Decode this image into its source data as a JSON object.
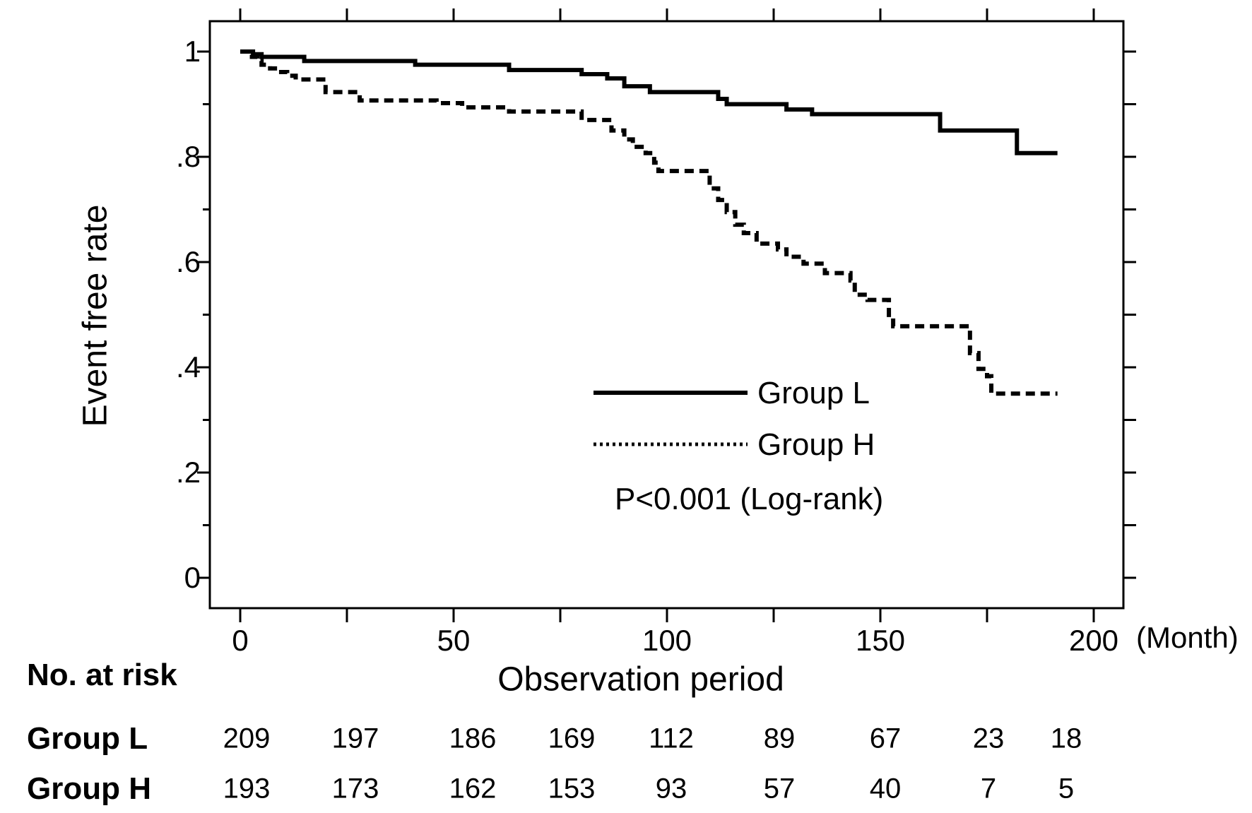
{
  "chart_data": {
    "type": "line",
    "subtype": "kaplan-meier-step-curves",
    "title": "",
    "ylabel": "Event free rate",
    "xlabel": "Observation period",
    "xunit": "(Month)",
    "grid": false,
    "legend_position": "inside-lower-right-of-center",
    "pvalue_text": "P<0.001 (Log-rank)",
    "line_color": "#000000",
    "x_axis": {
      "labeled_ticks": [
        {
          "value": 0,
          "label": "0"
        },
        {
          "value": 50,
          "label": "50"
        },
        {
          "value": 100,
          "label": "100"
        },
        {
          "value": 150,
          "label": "150"
        },
        {
          "value": 200,
          "label": "200"
        }
      ],
      "all_tick_values": [
        0,
        25,
        50,
        75,
        100,
        125,
        150,
        175,
        200
      ],
      "range_months": [
        0,
        200
      ]
    },
    "y_axis": {
      "labeled_ticks": [
        {
          "value": 1,
          "label": "1"
        },
        {
          "value": 0.8,
          "label": ".8"
        },
        {
          "value": 0.6,
          "label": ".6"
        },
        {
          "value": 0.4,
          "label": ".4"
        },
        {
          "value": 0.2,
          "label": ".2"
        },
        {
          "value": 0,
          "label": "0"
        }
      ],
      "minor_tick_values": [
        0.9,
        0.7,
        0.5,
        0.3,
        0.1
      ],
      "range": [
        0,
        1
      ]
    },
    "series": [
      {
        "name": "Group L",
        "style": "solid",
        "end_month": 191.5,
        "points": [
          [
            0,
            1.0
          ],
          [
            3,
            0.995
          ],
          [
            5,
            0.99
          ],
          [
            15,
            0.982
          ],
          [
            41,
            0.975
          ],
          [
            63,
            0.965
          ],
          [
            80,
            0.957
          ],
          [
            86,
            0.949
          ],
          [
            90,
            0.934
          ],
          [
            96,
            0.923
          ],
          [
            112,
            0.91
          ],
          [
            114,
            0.9
          ],
          [
            128,
            0.89
          ],
          [
            134,
            0.881
          ],
          [
            164,
            0.85
          ],
          [
            182,
            0.807
          ]
        ]
      },
      {
        "name": "Group H",
        "style": "dashed",
        "end_month": 191.5,
        "points": [
          [
            0,
            1.0
          ],
          [
            2,
            0.99
          ],
          [
            4,
            0.982
          ],
          [
            5,
            0.975
          ],
          [
            7,
            0.968
          ],
          [
            9,
            0.961
          ],
          [
            11,
            0.954
          ],
          [
            13,
            0.947
          ],
          [
            20,
            0.923
          ],
          [
            28,
            0.907
          ],
          [
            46,
            0.902
          ],
          [
            52,
            0.894
          ],
          [
            63,
            0.886
          ],
          [
            80,
            0.87
          ],
          [
            87,
            0.85
          ],
          [
            90,
            0.833
          ],
          [
            92,
            0.819
          ],
          [
            95,
            0.807
          ],
          [
            97,
            0.789
          ],
          [
            98,
            0.773
          ],
          [
            110,
            0.74
          ],
          [
            112,
            0.718
          ],
          [
            114,
            0.695
          ],
          [
            116,
            0.671
          ],
          [
            118,
            0.655
          ],
          [
            121,
            0.635
          ],
          [
            126,
            0.624
          ],
          [
            128,
            0.61
          ],
          [
            132,
            0.597
          ],
          [
            137,
            0.579
          ],
          [
            143,
            0.565
          ],
          [
            144,
            0.538
          ],
          [
            147,
            0.528
          ],
          [
            152,
            0.494
          ],
          [
            153,
            0.478
          ],
          [
            171,
            0.427
          ],
          [
            173,
            0.397
          ],
          [
            175,
            0.383
          ],
          [
            176,
            0.35
          ]
        ]
      }
    ]
  },
  "risk_table": {
    "heading": "No. at risk",
    "time_points_months": [
      0,
      25,
      50,
      75,
      100,
      125,
      150,
      175,
      193
    ],
    "rows": [
      {
        "label": "Group L",
        "counts": [
          "209",
          "197",
          "186",
          "169",
          "112",
          "89",
          "67",
          "23",
          "18"
        ]
      },
      {
        "label": "Group H",
        "counts": [
          "193",
          "173",
          "162",
          "153",
          "93",
          "57",
          "40",
          "7",
          "5"
        ]
      }
    ]
  }
}
